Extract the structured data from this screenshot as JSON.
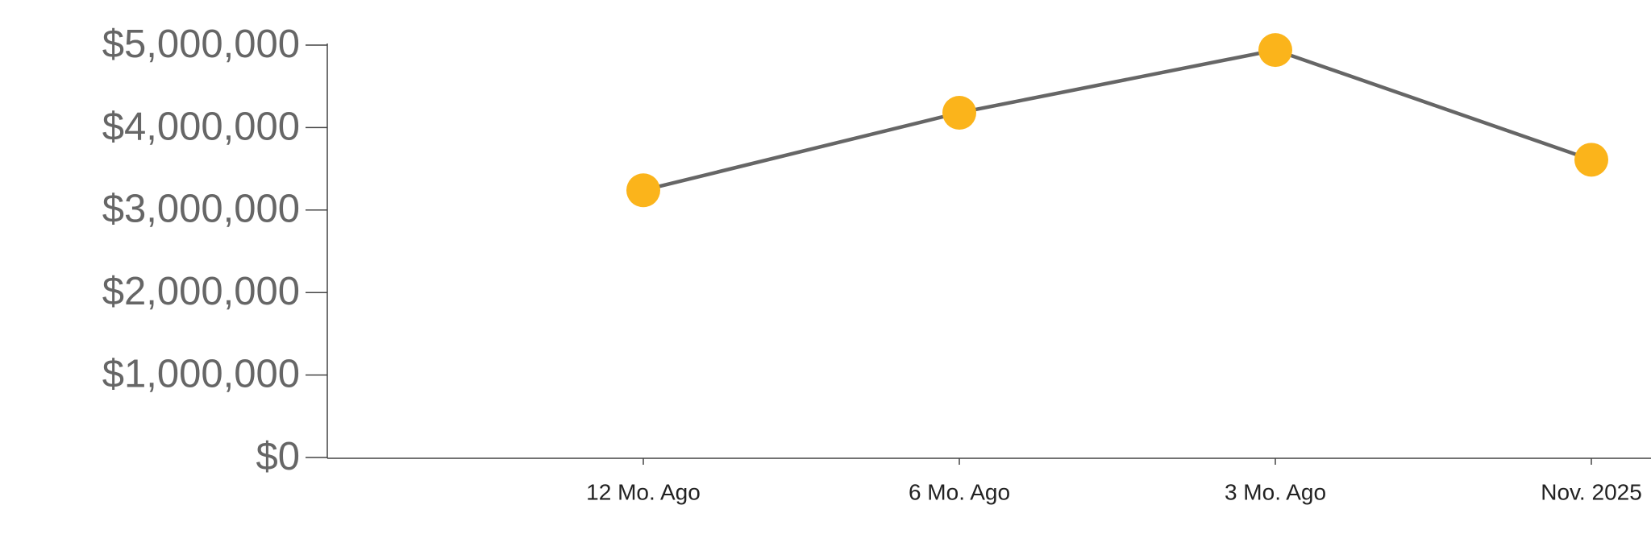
{
  "chart_data": {
    "type": "line",
    "categories": [
      null,
      "12 Mo. Ago",
      "6 Mo. Ago",
      "3 Mo. Ago",
      "Nov. 2025"
    ],
    "series": [
      {
        "values": [
          null,
          3240000,
          4180000,
          4940000,
          3610000
        ],
        "color": "#666666",
        "marker_color": "#fbb41b"
      }
    ],
    "ylim": [
      0,
      5000000
    ],
    "yticks": [
      {
        "value": 0,
        "label": "$0"
      },
      {
        "value": 1000000,
        "label": "$1,000,000"
      },
      {
        "value": 2000000,
        "label": "$2,000,000"
      },
      {
        "value": 3000000,
        "label": "$3,000,000"
      },
      {
        "value": 4000000,
        "label": "$4,000,000"
      },
      {
        "value": 5000000,
        "label": "$5,000,000"
      }
    ],
    "grid": false
  }
}
